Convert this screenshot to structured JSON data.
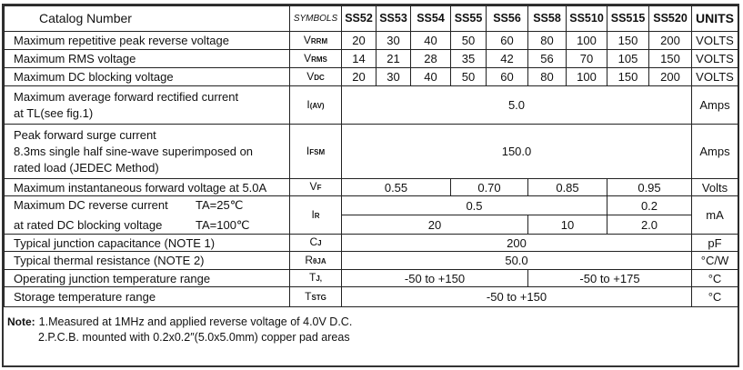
{
  "header": {
    "catalog": "Catalog   Number",
    "symbols": "SYMBOLS",
    "parts": [
      "SS52",
      "SS53",
      "SS54",
      "SS55",
      "SS56",
      "SS58",
      "SS510",
      "SS515",
      "SS520"
    ],
    "units": "UNITS"
  },
  "rows": {
    "vrrm": {
      "desc": "Maximum repetitive peak reverse voltage",
      "sym": "V",
      "sub": "RRM",
      "values": [
        "20",
        "30",
        "40",
        "50",
        "60",
        "80",
        "100",
        "150",
        "200"
      ],
      "unit": "VOLTS"
    },
    "vrms": {
      "desc": "Maximum RMS voltage",
      "sym": "V",
      "sub": "RMS",
      "values": [
        "14",
        "21",
        "28",
        "35",
        "42",
        "56",
        "70",
        "105",
        "150"
      ],
      "unit": "VOLTS"
    },
    "vdc": {
      "desc": "Maximum DC blocking voltage",
      "sym": "V",
      "sub": "DC",
      "values": [
        "20",
        "30",
        "40",
        "50",
        "60",
        "80",
        "100",
        "150",
        "200"
      ],
      "unit": "VOLTS"
    },
    "iav": {
      "desc1": "Maximum average forward rectified current",
      "desc2": "at TL(see fig.1)",
      "sym": "I",
      "sub": "(AV)",
      "value": "5.0",
      "unit": "Amps"
    },
    "ifsm": {
      "desc1": "Peak forward surge current",
      "desc2": "8.3ms single half sine-wave superimposed on",
      "desc3": "rated load (JEDEC Method)",
      "sym": "I",
      "sub": "FSM",
      "value": "150.0",
      "unit": "Amps"
    },
    "vf": {
      "desc": "Maximum instantaneous forward voltage at 5.0A",
      "sym": "V",
      "sub": "F",
      "values": [
        "0.55",
        "0.70",
        "0.85",
        "0.95"
      ],
      "unit": "Volts"
    },
    "ir": {
      "desc1": "Maximum DC reverse current",
      "cond1": "TA=25℃",
      "desc2": "at rated DC blocking voltage",
      "cond2": "TA=100℃",
      "sym": "I",
      "sub": "R",
      "values25": [
        "0.5",
        "0.2"
      ],
      "values100": [
        "20",
        "10",
        "2.0"
      ],
      "unit": "mA"
    },
    "cj": {
      "desc": "Typical junction capacitance (NOTE 1)",
      "sym": "C",
      "sub": "J",
      "value": "200",
      "unit": "pF"
    },
    "rth": {
      "desc": "Typical thermal resistance (NOTE 2)",
      "sym": "R",
      "sub": "θJA",
      "value": "50.0",
      "unit": "°C/W"
    },
    "tj": {
      "desc": "Operating junction temperature range",
      "sym": "T",
      "sub": "J,",
      "values": [
        "-50 to +150",
        "-50 to +175"
      ],
      "unit": "°C"
    },
    "tstg": {
      "desc": "Storage temperature range",
      "sym": "T",
      "sub": "STG",
      "value": "-50 to +150",
      "unit": "°C"
    }
  },
  "notes": {
    "label": "Note:",
    "n1": "1.Measured at 1MHz and applied reverse voltage of 4.0V D.C.",
    "n2": "2.P.C.B. mounted with 0.2x0.2″(5.0x5.0mm) copper pad areas"
  }
}
